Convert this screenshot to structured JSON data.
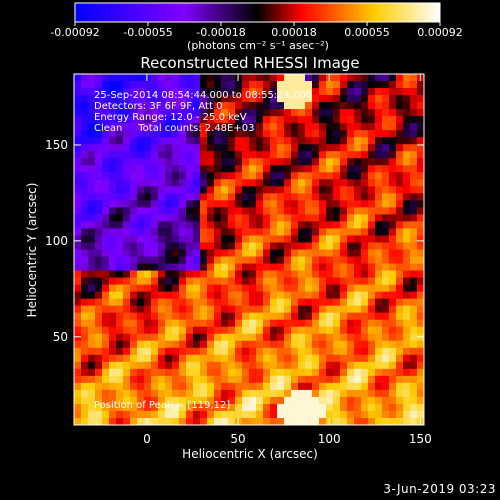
{
  "chart_data": {
    "type": "heatmap",
    "title": "Reconstructed RHESSI Image",
    "xlabel": "Heliocentric X (arcsec)",
    "ylabel": "Heliocentric Y (arcsec)",
    "xlim": [
      -40,
      152
    ],
    "ylim": [
      4,
      187
    ],
    "x_ticks": [
      0,
      50,
      100,
      150
    ],
    "y_ticks": [
      50,
      100,
      150
    ],
    "colorbar": {
      "ticks": [
        "-0.00092",
        "-0.00055",
        "-0.00018",
        "0.00018",
        "0.00055",
        "0.00092"
      ],
      "range": [
        -0.00092,
        0.00092
      ],
      "units_label": "(photons cm⁻² s⁻¹ asec⁻²)",
      "colors": [
        "#0000ff",
        "#8000ff",
        "#000000",
        "#ff0000",
        "#ffcc00",
        "#ffffff"
      ]
    },
    "info_lines": [
      "25-Sep-2014 08:54:44.000 to 08:55:24.000",
      "Detectors: 3F 6F 9F, Att 0",
      "Energy Range: 12.0 - 25.0 keV",
      "Clean     Total counts: 2.48E+03"
    ],
    "peak_label": "Position of Peak = [119,12]",
    "peak_position": [
      119,
      12
    ]
  },
  "footer": {
    "date": "3-Jun-2019 03:23"
  }
}
